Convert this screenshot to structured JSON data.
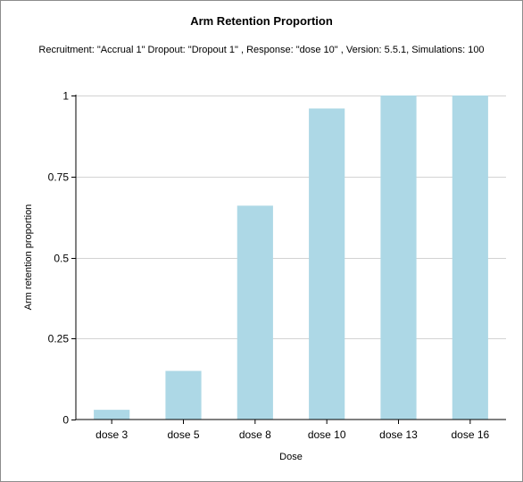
{
  "chart_data": {
    "type": "bar",
    "title": "Arm Retention Proportion",
    "subtitle": "Recruitment: \"Accrual 1\" Dropout: \"Dropout 1\" , Response: \"dose 10\" , Version: 5.5.1, Simulations: 100",
    "xlabel": "Dose",
    "ylabel": "Arm retention proportion",
    "categories": [
      "dose 3",
      "dose 5",
      "dose 8",
      "dose 10",
      "dose 13",
      "dose 16"
    ],
    "values": [
      0.03,
      0.15,
      0.66,
      0.96,
      1.0,
      1.0
    ],
    "ylim": [
      0,
      1
    ],
    "yticks": [
      0,
      0.25,
      0.5,
      0.75,
      1
    ],
    "ytick_labels": [
      "0",
      "0.25",
      "0.5",
      "0.75",
      "1"
    ],
    "grid": true,
    "bar_color": "#ADD8E6",
    "grid_color": "#D3D3D3"
  }
}
